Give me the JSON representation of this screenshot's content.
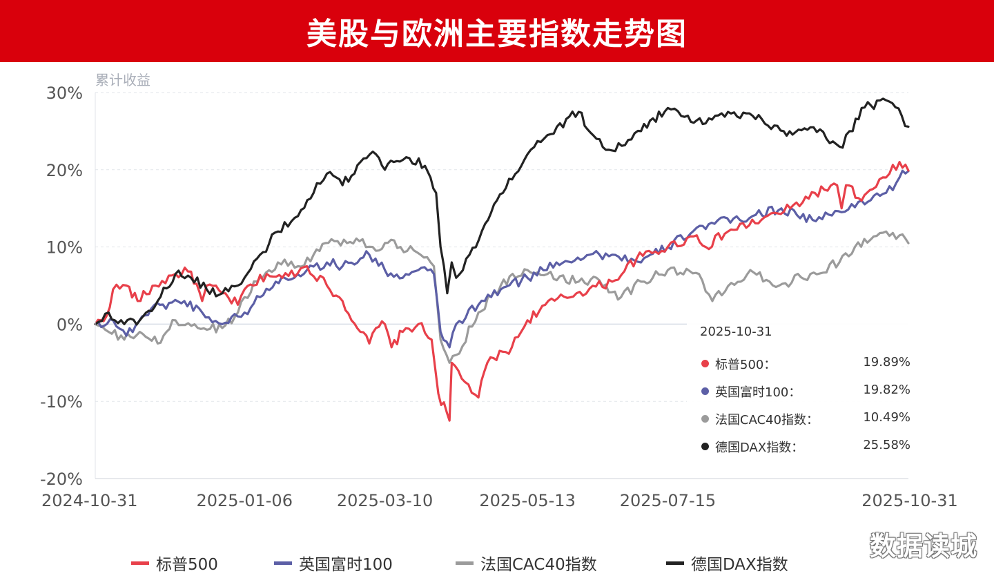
{
  "header": {
    "title": "美股与欧洲主要指数走势图"
  },
  "watermark": "数据读城",
  "tooltip": {
    "date": "2025-10-31",
    "rows": [
      {
        "name": "标普500：",
        "value": "19.89%",
        "color": "#e8404a"
      },
      {
        "name": "英国富时100：",
        "value": "19.82%",
        "color": "#5c5fa6"
      },
      {
        "name": "法国CAC40指数：",
        "value": "10.49%",
        "color": "#9b9b9b"
      },
      {
        "name": "德国DAX指数：",
        "value": "25.58%",
        "color": "#222222"
      }
    ]
  },
  "chart_data": {
    "type": "line",
    "ylabel": "累计收益",
    "y_ticks": [
      "30%",
      "20%",
      "10%",
      "0%",
      "-10%",
      "-20%"
    ],
    "ylim": [
      -20,
      30
    ],
    "x_tick_labels": [
      "2024-10-31",
      "2025-01-06",
      "2025-03-10",
      "2025-05-13",
      "2025-07-15",
      "2025-10-31"
    ],
    "x_tick_dates": [
      "2024-10-31",
      "2025-01-06",
      "2025-03-10",
      "2025-05-13",
      "2025-07-15",
      "2025-10-31"
    ],
    "xlim": [
      "2024-10-31",
      "2025-10-31"
    ],
    "grid": "horizontal",
    "legend": "bottom",
    "series": [
      {
        "name": "标普500",
        "color": "#e8404a",
        "x": [
          "2024-10-31",
          "2024-11-05",
          "2024-11-08",
          "2024-11-14",
          "2024-11-19",
          "2024-11-27",
          "2024-12-06",
          "2024-12-13",
          "2024-12-18",
          "2024-12-20",
          "2024-12-27",
          "2025-01-03",
          "2025-01-06",
          "2025-01-10",
          "2025-01-16",
          "2025-01-23",
          "2025-02-03",
          "2025-02-12",
          "2025-02-19",
          "2025-02-27",
          "2025-03-03",
          "2025-03-06",
          "2025-03-10",
          "2025-03-13",
          "2025-03-18",
          "2025-03-25",
          "2025-03-31",
          "2025-04-03",
          "2025-04-08",
          "2025-04-09",
          "2025-04-15",
          "2025-04-21",
          "2025-04-25",
          "2025-05-06",
          "2025-05-13",
          "2025-05-21",
          "2025-06-04",
          "2025-06-20",
          "2025-07-01",
          "2025-07-15",
          "2025-07-28",
          "2025-08-01",
          "2025-08-11",
          "2025-08-26",
          "2025-09-08",
          "2025-09-19",
          "2025-09-29",
          "2025-10-01",
          "2025-10-03",
          "2025-10-10",
          "2025-10-15",
          "2025-10-21",
          "2025-10-27",
          "2025-10-31"
        ],
        "y": [
          0.0,
          1.0,
          4.5,
          5.0,
          3.0,
          5.0,
          6.5,
          6.8,
          3.0,
          5.0,
          4.0,
          2.5,
          4.5,
          5.0,
          6.5,
          6.0,
          7.5,
          5.0,
          3.0,
          -1.0,
          -2.5,
          -0.5,
          0.0,
          -3.0,
          -1.0,
          0.0,
          -2.0,
          -9.0,
          -12.5,
          -5.0,
          -7.5,
          -9.5,
          -5.0,
          -3.0,
          0.5,
          2.5,
          4.0,
          5.5,
          8.5,
          10.0,
          11.5,
          10.0,
          12.0,
          13.5,
          15.0,
          17.0,
          18.0,
          15.0,
          18.0,
          16.0,
          17.5,
          19.0,
          21.0,
          19.89
        ]
      },
      {
        "name": "英国富时100",
        "color": "#5c5fa6",
        "x": [
          "2024-10-31",
          "2024-11-08",
          "2024-11-14",
          "2024-11-21",
          "2024-11-29",
          "2024-12-10",
          "2024-12-18",
          "2024-12-27",
          "2025-01-03",
          "2025-01-06",
          "2025-01-13",
          "2025-01-20",
          "2025-02-03",
          "2025-02-12",
          "2025-02-19",
          "2025-02-27",
          "2025-03-03",
          "2025-03-10",
          "2025-03-18",
          "2025-03-25",
          "2025-04-01",
          "2025-04-04",
          "2025-04-08",
          "2025-04-11",
          "2025-04-21",
          "2025-05-01",
          "2025-05-13",
          "2025-05-26",
          "2025-06-10",
          "2025-06-20",
          "2025-07-03",
          "2025-07-15",
          "2025-07-28",
          "2025-08-05",
          "2025-08-22",
          "2025-09-04",
          "2025-09-18",
          "2025-10-01",
          "2025-10-10",
          "2025-10-21",
          "2025-10-27",
          "2025-10-31"
        ],
        "y": [
          0.0,
          0.5,
          -1.5,
          1.0,
          2.5,
          3.0,
          1.5,
          0.0,
          1.0,
          1.5,
          3.5,
          5.5,
          7.0,
          8.0,
          7.5,
          8.5,
          9.0,
          7.0,
          6.0,
          7.0,
          6.5,
          -1.0,
          -3.0,
          0.0,
          2.5,
          4.5,
          6.0,
          8.0,
          9.0,
          9.0,
          8.0,
          10.0,
          12.5,
          13.0,
          14.0,
          15.0,
          13.5,
          14.5,
          16.0,
          17.0,
          19.0,
          19.82
        ]
      },
      {
        "name": "法国CAC40指数",
        "color": "#9b9b9b",
        "x": [
          "2024-10-31",
          "2024-11-06",
          "2024-11-13",
          "2024-11-20",
          "2024-11-28",
          "2024-12-06",
          "2024-12-16",
          "2024-12-27",
          "2025-01-03",
          "2025-01-06",
          "2025-01-13",
          "2025-01-21",
          "2025-01-30",
          "2025-02-06",
          "2025-02-14",
          "2025-02-21",
          "2025-02-28",
          "2025-03-06",
          "2025-03-10",
          "2025-03-17",
          "2025-03-26",
          "2025-04-01",
          "2025-04-04",
          "2025-04-08",
          "2025-04-11",
          "2025-04-21",
          "2025-05-01",
          "2025-05-13",
          "2025-05-22",
          "2025-06-05",
          "2025-06-13",
          "2025-06-24",
          "2025-07-03",
          "2025-07-15",
          "2025-07-29",
          "2025-08-04",
          "2025-08-21",
          "2025-09-03",
          "2025-09-17",
          "2025-09-30",
          "2025-10-07",
          "2025-10-21",
          "2025-10-27",
          "2025-10-31"
        ],
        "y": [
          0.0,
          -1.0,
          -2.0,
          -1.0,
          -2.5,
          0.5,
          -0.5,
          -0.5,
          1.5,
          3.5,
          6.0,
          8.0,
          7.5,
          9.0,
          11.0,
          10.5,
          11.0,
          9.5,
          10.5,
          10.0,
          9.0,
          7.5,
          -2.0,
          -5.0,
          -4.0,
          1.5,
          5.0,
          7.0,
          6.5,
          5.5,
          6.0,
          3.5,
          5.5,
          7.0,
          6.5,
          3.0,
          7.0,
          5.0,
          6.5,
          8.0,
          10.0,
          12.0,
          11.5,
          10.49
        ]
      },
      {
        "name": "德国DAX指数",
        "color": "#222222",
        "x": [
          "2024-10-31",
          "2024-11-06",
          "2024-11-13",
          "2024-11-20",
          "2024-11-28",
          "2024-12-06",
          "2024-12-13",
          "2024-12-20",
          "2024-12-27",
          "2025-01-03",
          "2025-01-06",
          "2025-01-13",
          "2025-01-21",
          "2025-01-30",
          "2025-02-06",
          "2025-02-12",
          "2025-02-19",
          "2025-02-27",
          "2025-03-06",
          "2025-03-10",
          "2025-03-14",
          "2025-03-21",
          "2025-03-28",
          "2025-04-02",
          "2025-04-04",
          "2025-04-07",
          "2025-04-09",
          "2025-04-11",
          "2025-04-17",
          "2025-04-24",
          "2025-05-02",
          "2025-05-13",
          "2025-05-22",
          "2025-06-05",
          "2025-06-13",
          "2025-06-20",
          "2025-07-03",
          "2025-07-15",
          "2025-07-24",
          "2025-08-01",
          "2025-08-11",
          "2025-08-22",
          "2025-09-05",
          "2025-09-17",
          "2025-09-30",
          "2025-10-06",
          "2025-10-10",
          "2025-10-21",
          "2025-10-28",
          "2025-10-31"
        ],
        "y": [
          0.0,
          1.5,
          0.0,
          0.5,
          3.0,
          6.5,
          6.0,
          4.5,
          4.0,
          5.0,
          6.0,
          9.0,
          12.0,
          14.0,
          17.0,
          19.5,
          18.0,
          21.0,
          22.0,
          20.0,
          21.0,
          21.5,
          20.5,
          17.0,
          10.0,
          4.0,
          8.0,
          6.0,
          9.0,
          13.0,
          17.0,
          22.0,
          24.5,
          27.5,
          24.0,
          22.5,
          25.0,
          28.0,
          27.0,
          26.0,
          27.5,
          27.0,
          25.0,
          25.5,
          23.0,
          25.0,
          28.0,
          29.0,
          27.0,
          25.58
        ]
      }
    ]
  }
}
